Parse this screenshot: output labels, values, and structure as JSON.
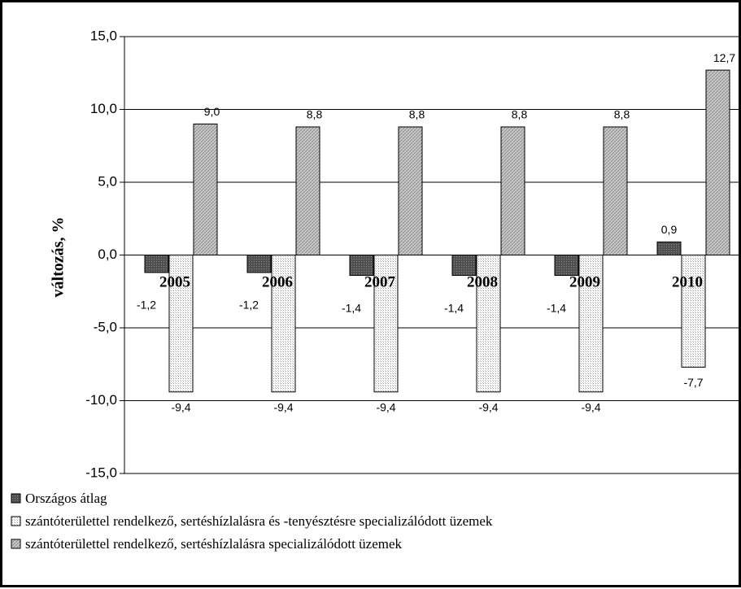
{
  "chart_data": {
    "type": "bar",
    "ylabel": "változás, %",
    "ylim": [
      -15,
      15
    ],
    "yticks": [
      15,
      10,
      5,
      0,
      -5,
      -10,
      -15
    ],
    "ytick_labels": [
      "15,0",
      "10,0",
      "5,0",
      "0,0",
      "-5,0",
      "-10,0",
      "-15,0"
    ],
    "grid": true,
    "legend_position": "bottom",
    "categories": [
      "2005",
      "2006",
      "2007",
      "2008",
      "2009",
      "2010"
    ],
    "series": [
      {
        "name": "Országos átlag",
        "values": [
          -1.2,
          -1.2,
          -1.4,
          -1.4,
          -1.4,
          0.9
        ],
        "labels": [
          "-1,2",
          "-1,2",
          "-1,4",
          "-1,4",
          "-1,4",
          "0,9"
        ],
        "color": "#5a5a5a"
      },
      {
        "name": "szántóterülettel rendelkező, sertéshízlalásra és -tenyésztésre specializálódott üzemek",
        "values": [
          -9.4,
          -9.4,
          -9.4,
          -9.4,
          -9.4,
          -7.7
        ],
        "labels": [
          "-9,4",
          "-9,4",
          "-9,4",
          "-9,4",
          "-9,4",
          "-7,7"
        ],
        "color": "#ececec"
      },
      {
        "name": "szántóterülettel rendelkező, sertéshízlalásra  specializálódott üzemek",
        "values": [
          9.0,
          8.8,
          8.8,
          8.8,
          8.8,
          12.7
        ],
        "labels": [
          "9,0",
          "8,8",
          "8,8",
          "8,8",
          "8,8",
          "12,7"
        ],
        "color": "#b4b4b4"
      }
    ]
  }
}
